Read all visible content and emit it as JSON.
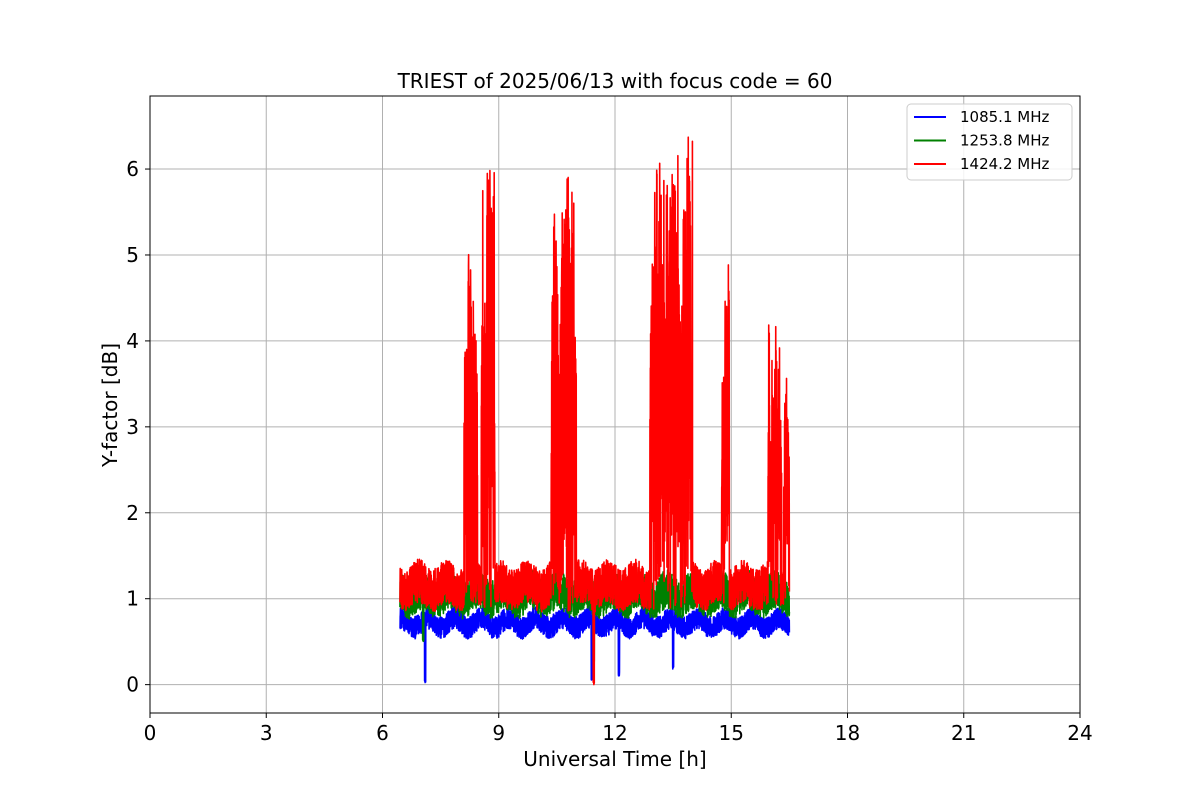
{
  "chart_data": {
    "type": "line",
    "title": "TRIEST of 2025/06/13 with focus code = 60",
    "xlabel": "Universal Time [h]",
    "ylabel": "Y-factor [dB]",
    "xlim": [
      0,
      24
    ],
    "ylim": [
      -0.33,
      6.85
    ],
    "xticks": [
      0,
      3,
      6,
      9,
      12,
      15,
      18,
      21,
      24
    ],
    "xtick_labels": [
      "0",
      "3",
      "6",
      "9",
      "12",
      "15",
      "18",
      "21",
      "24"
    ],
    "yticks": [
      0,
      1,
      2,
      3,
      4,
      5,
      6
    ],
    "ytick_labels": [
      "0",
      "1",
      "2",
      "3",
      "4",
      "5",
      "6"
    ],
    "grid": true,
    "legend_position": "top-right",
    "series": [
      {
        "name": "1085.1 MHz",
        "color": "#0000ff",
        "description": "dense noisy trace between about 6.5 h and 16.5 h, mostly 0.5-0.9 dB",
        "x_range": [
          6.45,
          16.5
        ],
        "base": 0.72,
        "noise": 0.26,
        "dips": [
          [
            7.1,
            0.02
          ],
          [
            11.4,
            0.05
          ],
          [
            12.1,
            0.1
          ],
          [
            13.5,
            0.18
          ]
        ],
        "bursts": []
      },
      {
        "name": "1253.8 MHz",
        "color": "#008000",
        "description": "dense noisy trace between about 6.5 h and 16.5 h, mostly 0.9-1.4 dB",
        "x_range": [
          6.45,
          16.5
        ],
        "base": 1.05,
        "noise": 0.45,
        "dips": [
          [
            7.05,
            0.5
          ],
          [
            11.45,
            0.25
          ]
        ],
        "bursts": []
      },
      {
        "name": "1424.2 MHz",
        "color": "#ff0000",
        "description": "baseline around 1.2 dB with interference bursts reaching up to ~6.5 dB",
        "x_range": [
          6.45,
          16.5
        ],
        "base": 1.15,
        "noise": 0.5,
        "dips": [
          [
            11.45,
            0.0
          ]
        ],
        "bursts": [
          [
            8.1,
            8.45,
            5.25
          ],
          [
            8.55,
            8.9,
            6.02
          ],
          [
            10.35,
            10.55,
            5.8
          ],
          [
            10.55,
            11.0,
            5.95
          ],
          [
            12.9,
            13.3,
            6.25
          ],
          [
            13.3,
            13.7,
            6.2
          ],
          [
            13.7,
            14.0,
            6.53
          ],
          [
            14.75,
            14.95,
            4.9
          ],
          [
            15.95,
            16.3,
            4.2
          ],
          [
            16.35,
            16.5,
            3.6
          ]
        ]
      }
    ]
  }
}
